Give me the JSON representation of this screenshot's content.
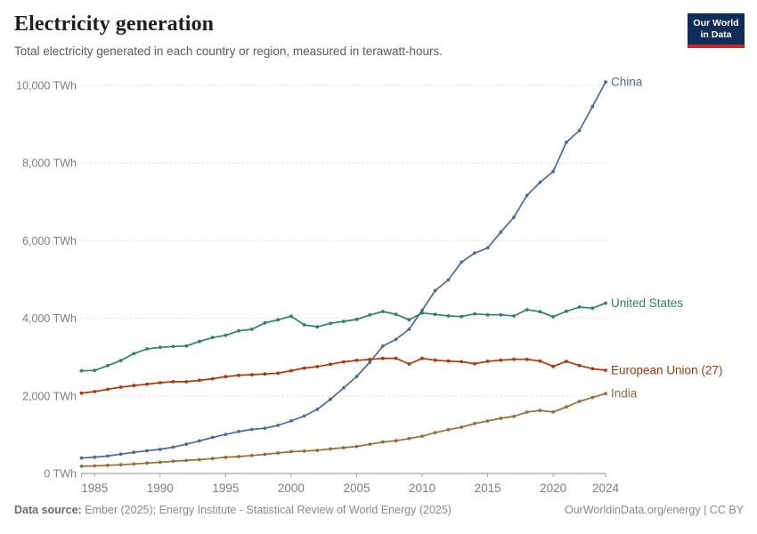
{
  "header": {
    "title": "Electricity generation",
    "subtitle": "Total electricity generated in each country or region, measured in terawatt-hours."
  },
  "logo": {
    "line1": "Our World",
    "line2": "in Data",
    "bg_color": "#102d59",
    "bar_color": "#cd2328"
  },
  "footer": {
    "source_label": "Data source:",
    "source_text": "Ember (2025); Energy Institute - Statistical Review of World Energy (2025)",
    "right_text": "OurWorldinData.org/energy | CC BY"
  },
  "chart_data": {
    "type": "line",
    "title": "Electricity generation",
    "unit": "TWh",
    "xlabel": "",
    "ylabel": "",
    "xlim": [
      1984,
      2024
    ],
    "ylim": [
      0,
      10000
    ],
    "grid": "horizontal-dashed",
    "legend_position": "end-of-line-labels",
    "x": [
      1984,
      1985,
      1986,
      1987,
      1988,
      1989,
      1990,
      1991,
      1992,
      1993,
      1994,
      1995,
      1996,
      1997,
      1998,
      1999,
      2000,
      2001,
      2002,
      2003,
      2004,
      2005,
      2006,
      2007,
      2008,
      2009,
      2010,
      2011,
      2012,
      2013,
      2014,
      2015,
      2016,
      2017,
      2018,
      2019,
      2020,
      2021,
      2022,
      2023,
      2024
    ],
    "x_ticks": [
      {
        "value": 1985,
        "label": "1985"
      },
      {
        "value": 1990,
        "label": "1990"
      },
      {
        "value": 1995,
        "label": "1995"
      },
      {
        "value": 2000,
        "label": "2000"
      },
      {
        "value": 2005,
        "label": "2005"
      },
      {
        "value": 2010,
        "label": "2010"
      },
      {
        "value": 2015,
        "label": "2015"
      },
      {
        "value": 2020,
        "label": "2020"
      },
      {
        "value": 2024,
        "label": "2024"
      }
    ],
    "y_ticks": [
      {
        "value": 0,
        "label": "0 TWh"
      },
      {
        "value": 2000,
        "label": "2,000 TWh"
      },
      {
        "value": 4000,
        "label": "4,000 TWh"
      },
      {
        "value": 6000,
        "label": "6,000 TWh"
      },
      {
        "value": 8000,
        "label": "8,000 TWh"
      },
      {
        "value": 10000,
        "label": "10,000 TWh"
      }
    ],
    "series": [
      {
        "name": "China",
        "color": "#4c6a9c",
        "values": [
          400,
          420,
          450,
          497,
          545,
          585,
          621,
          678,
          754,
          839,
          928,
          1007,
          1081,
          1136,
          1167,
          1239,
          1356,
          1481,
          1654,
          1911,
          2203,
          2500,
          2866,
          3282,
          3457,
          3715,
          4207,
          4713,
          4988,
          5447,
          5678,
          5815,
          6218,
          6604,
          7166,
          7503,
          7779,
          8534,
          8840,
          9456,
          10087
        ]
      },
      {
        "name": "United States",
        "color": "#2c8465",
        "values": [
          2645,
          2655,
          2780,
          2910,
          3090,
          3210,
          3250,
          3273,
          3287,
          3402,
          3503,
          3560,
          3677,
          3716,
          3883,
          3961,
          4053,
          3831,
          3780,
          3870,
          3920,
          3970,
          4085,
          4175,
          4100,
          3960,
          4136,
          4100,
          4060,
          4045,
          4113,
          4090,
          4090,
          4060,
          4220,
          4170,
          4040,
          4180,
          4290,
          4260,
          4390
        ]
      },
      {
        "name": "European Union (27)",
        "color": "#b13507",
        "values": [
          2070,
          2110,
          2170,
          2225,
          2265,
          2300,
          2340,
          2365,
          2365,
          2400,
          2440,
          2495,
          2530,
          2545,
          2565,
          2585,
          2650,
          2715,
          2755,
          2815,
          2875,
          2915,
          2940,
          2965,
          2970,
          2820,
          2966,
          2920,
          2897,
          2880,
          2828,
          2890,
          2920,
          2943,
          2943,
          2897,
          2760,
          2890,
          2782,
          2700,
          2661
        ]
      },
      {
        "name": "India",
        "color": "#996d39",
        "values": [
          185,
          195,
          210,
          225,
          245,
          269,
          289,
          315,
          336,
          356,
          385,
          418,
          436,
          463,
          494,
          527,
          561,
          579,
          597,
          633,
          665,
          697,
          752,
          813,
          843,
          899,
          960,
          1053,
          1128,
          1193,
          1287,
          1354,
          1423,
          1471,
          1583,
          1623,
          1585,
          1715,
          1858,
          1958,
          2059
        ]
      }
    ]
  }
}
